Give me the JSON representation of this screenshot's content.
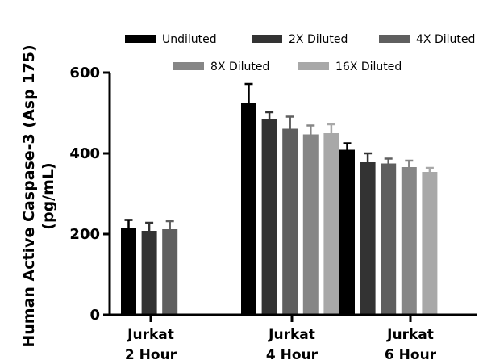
{
  "chart_data": {
    "type": "bar",
    "ylabel_line1": "Human Active Caspase-3 (Asp 175)",
    "ylabel_line2": "(pg/mL)",
    "ylim": [
      0,
      600
    ],
    "yticks": [
      "0",
      "200",
      "400",
      "600"
    ],
    "legend_position": "top",
    "categories": [
      {
        "line1": "Jurkat",
        "line2": "2 Hour"
      },
      {
        "line1": "Jurkat",
        "line2": "4 Hour"
      },
      {
        "line1": "Jurkat",
        "line2": "6 Hour"
      }
    ],
    "series": [
      {
        "name": "Undiluted",
        "color": "#000000",
        "values": [
          214,
          524,
          409
        ],
        "errors": [
          21,
          48,
          16
        ]
      },
      {
        "name": "2X Diluted",
        "color": "#333333",
        "values": [
          208,
          484,
          378
        ],
        "errors": [
          20,
          18,
          22
        ]
      },
      {
        "name": "4X Diluted",
        "color": "#5f5f5f",
        "values": [
          212,
          461,
          375
        ],
        "errors": [
          20,
          30,
          12
        ]
      },
      {
        "name": "8X Diluted",
        "color": "#868686",
        "values": [
          null,
          447,
          366
        ],
        "errors": [
          null,
          22,
          16
        ]
      },
      {
        "name": "16X Diluted",
        "color": "#a8a8a8",
        "values": [
          null,
          450,
          354
        ],
        "errors": [
          null,
          22,
          10
        ]
      }
    ]
  }
}
